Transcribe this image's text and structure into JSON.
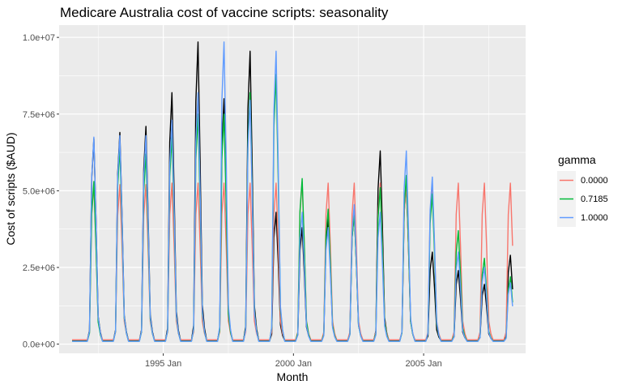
{
  "chart_data": {
    "type": "line",
    "title": "Medicare Australia cost of vaccine scripts: seasonality",
    "xlabel": "Month",
    "ylabel": "Cost of scripts ($AUD)",
    "x_ticks": [
      "1995 Jan",
      "2000 Jan",
      "2005 Jan"
    ],
    "y_ticks": [
      "0.0e+00",
      "2.5e+06",
      "5.0e+06",
      "7.5e+06",
      "1.0e+07"
    ],
    "ylim": [
      -300000,
      10400000
    ],
    "legend": {
      "title": "gamma",
      "position": "right",
      "entries": [
        {
          "label": "0.0000",
          "color": "#F8766D"
        },
        {
          "label": "0.7185",
          "color": "#00BA38"
        },
        {
          "label": "1.0000",
          "color": "#619CFF"
        }
      ]
    },
    "x_start": "1991 Jul",
    "x_end": "2008 Jun",
    "peaks": {
      "months": [
        "1992 May",
        "1993 May",
        "1994 May",
        "1995 May",
        "1996 May",
        "1997 May",
        "1998 May",
        "1999 May",
        "2000 May",
        "2001 May",
        "2002 May",
        "2003 May",
        "2004 May",
        "2005 May",
        "2006 May",
        "2007 May",
        "2008 May"
      ],
      "actual": [
        6700000,
        6900000,
        7100000,
        8200000,
        9850000,
        8000000,
        9550000,
        4300000,
        3800000,
        4100000,
        4300000,
        6300000,
        5300000,
        3000000,
        2400000,
        1950000,
        2900000
      ],
      "gamma_0.0000": [
        5200000,
        5200000,
        5200000,
        5250000,
        5250000,
        5250000,
        5250000,
        5250000,
        5300000,
        5250000,
        5250000,
        5250000,
        5250000,
        5250000,
        5250000,
        5250000,
        5250000
      ],
      "gamma_0.7185": [
        5300000,
        6400000,
        6200000,
        6800000,
        7500000,
        7500000,
        8200000,
        8800000,
        5400000,
        4400000,
        4300000,
        5100000,
        5500000,
        4900000,
        3700000,
        2800000,
        2200000
      ],
      "gamma_1.0000": [
        6750000,
        6800000,
        6800000,
        7300000,
        8200000,
        9850000,
        7950000,
        9550000,
        4300000,
        3800000,
        4550000,
        4300000,
        6300000,
        5450000,
        3000000,
        2500000,
        2000000
      ]
    }
  }
}
